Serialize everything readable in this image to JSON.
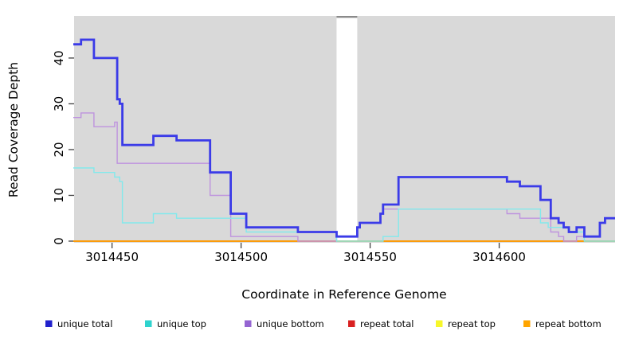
{
  "chart_data": {
    "type": "line",
    "step": true,
    "title": "",
    "xlabel": "Coordinate in Reference Genome",
    "ylabel": "Read Coverage Depth",
    "xlim": [
      3014435.3,
      3014644.9
    ],
    "ylim": [
      -0.35,
      49.2
    ],
    "xticks": [
      3014450,
      3014500,
      3014550,
      3014600
    ],
    "yticks": [
      0,
      10,
      20,
      30,
      40
    ],
    "grid": false,
    "panel_background": "#d9d9d9",
    "masked_region": {
      "x0": 3014537,
      "x1": 3014545,
      "fill": "#ffffff",
      "cap_color": "#8a8a8a"
    },
    "legend_position": "bottom",
    "legend": [
      {
        "label": "unique total",
        "color": "#2121cc"
      },
      {
        "label": "unique top",
        "color": "#2fd3ce"
      },
      {
        "label": "unique bottom",
        "color": "#9565d2"
      },
      {
        "label": "repeat total",
        "color": "#d92121"
      },
      {
        "label": "repeat top",
        "color": "#f7f72a"
      },
      {
        "label": "repeat bottom",
        "color": "#ffa500"
      }
    ],
    "draw_order": [
      4,
      3,
      5,
      2,
      1,
      0
    ],
    "series": [
      {
        "name": "unique total",
        "line_color": "#3b3be8",
        "line_width": 2.8,
        "points": [
          [
            3014435,
            43
          ],
          [
            3014438,
            44
          ],
          [
            3014443,
            40
          ],
          [
            3014452,
            31
          ],
          [
            3014453,
            30
          ],
          [
            3014454,
            21
          ],
          [
            3014466,
            23
          ],
          [
            3014475,
            22
          ],
          [
            3014488,
            15
          ],
          [
            3014496,
            6
          ],
          [
            3014502,
            3
          ],
          [
            3014522,
            2
          ],
          [
            3014537,
            1
          ],
          [
            3014545,
            3
          ],
          [
            3014546,
            4
          ],
          [
            3014554,
            6
          ],
          [
            3014555,
            8
          ],
          [
            3014561,
            14
          ],
          [
            3014603,
            13
          ],
          [
            3014608,
            12
          ],
          [
            3014616,
            9
          ],
          [
            3014620,
            5
          ],
          [
            3014623,
            4
          ],
          [
            3014625,
            3
          ],
          [
            3014627,
            2
          ],
          [
            3014630,
            3
          ],
          [
            3014633,
            1
          ],
          [
            3014639,
            4
          ],
          [
            3014641,
            5
          ]
        ]
      },
      {
        "name": "unique top",
        "line_color": "#82e9ec",
        "line_width": 1.4,
        "points": [
          [
            3014435,
            16
          ],
          [
            3014443,
            15
          ],
          [
            3014451,
            14
          ],
          [
            3014453,
            13
          ],
          [
            3014454,
            4
          ],
          [
            3014466,
            6
          ],
          [
            3014475,
            5
          ],
          [
            3014502,
            2
          ],
          [
            3014537,
            0
          ],
          [
            3014555,
            1
          ],
          [
            3014561,
            7
          ],
          [
            3014616,
            4
          ],
          [
            3014619,
            3
          ],
          [
            3014627,
            2
          ],
          [
            3014633,
            0
          ]
        ]
      },
      {
        "name": "unique bottom",
        "line_color": "#be93de",
        "line_width": 1.4,
        "points": [
          [
            3014435,
            27
          ],
          [
            3014438,
            28
          ],
          [
            3014443,
            25
          ],
          [
            3014451,
            26
          ],
          [
            3014452,
            17
          ],
          [
            3014488,
            10
          ],
          [
            3014496,
            1
          ],
          [
            3014522,
            0
          ],
          [
            3014537,
            1
          ],
          [
            3014545,
            3
          ],
          [
            3014546,
            4
          ],
          [
            3014554,
            6
          ],
          [
            3014555,
            7
          ],
          [
            3014603,
            6
          ],
          [
            3014608,
            5
          ],
          [
            3014620,
            2
          ],
          [
            3014623,
            1
          ],
          [
            3014625,
            0
          ],
          [
            3014630,
            1
          ],
          [
            3014633,
            1
          ],
          [
            3014639,
            4
          ],
          [
            3014641,
            5
          ]
        ]
      },
      {
        "name": "repeat total",
        "line_color": "#d92121",
        "line_width": 1.4,
        "points": [
          [
            3014435,
            0
          ]
        ]
      },
      {
        "name": "repeat top",
        "line_color": "#f7f72a",
        "line_width": 1.4,
        "points": [
          [
            3014435,
            0
          ]
        ]
      },
      {
        "name": "repeat bottom",
        "line_color": "#ffa000",
        "line_width": 1.8,
        "points": [
          [
            3014435,
            0
          ]
        ]
      }
    ]
  }
}
